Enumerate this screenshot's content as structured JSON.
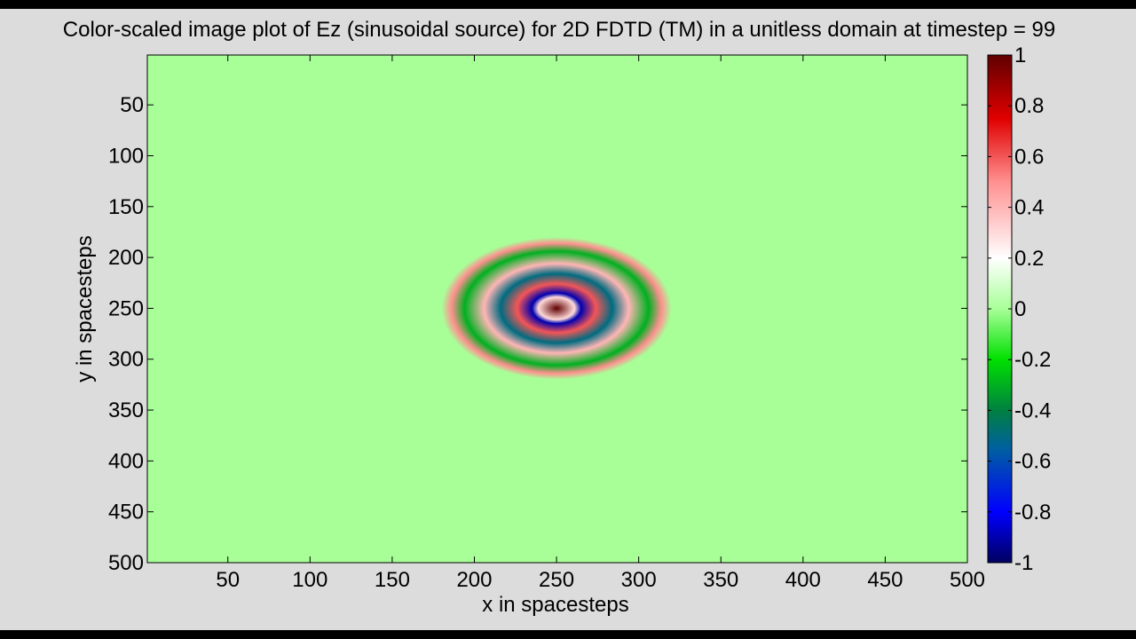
{
  "chart_data": {
    "type": "heatmap",
    "title": "Color-scaled image plot of Ez (sinusoidal source) for 2D FDTD (TM) in a unitless domain at timestep = 99",
    "xlabel": "x in spacesteps",
    "ylabel": "y in spacesteps",
    "xlim": [
      1,
      500
    ],
    "ylim": [
      1,
      500
    ],
    "y_axis_direction": "reversed",
    "x_ticks": [
      "50",
      "100",
      "150",
      "200",
      "250",
      "300",
      "350",
      "400",
      "450",
      "500"
    ],
    "y_ticks": [
      "50",
      "100",
      "150",
      "200",
      "250",
      "300",
      "350",
      "400",
      "450",
      "500"
    ],
    "grid": false,
    "background_value": 0,
    "source_center": [
      250,
      250
    ],
    "rings": [
      {
        "radius": 0,
        "value": 1.0
      },
      {
        "radius": 11,
        "value": 0.3
      },
      {
        "radius": 15,
        "value": -0.9
      },
      {
        "radius": 24,
        "value": 0.6
      },
      {
        "radius": 34,
        "value": -0.5
      },
      {
        "radius": 44,
        "value": 0.4
      },
      {
        "radius": 56,
        "value": -0.3
      },
      {
        "radius": 64,
        "value": 0.5
      },
      {
        "radius": 70,
        "value": 0
      }
    ],
    "colorbar": {
      "ticks": [
        "1",
        "0.8",
        "0.6",
        "0.4",
        "0.2",
        "0",
        "-0.2",
        "-0.4",
        "-0.6",
        "-0.8",
        "-1"
      ],
      "range": [
        -1,
        1
      ],
      "colormap": [
        {
          "value": -1.0,
          "color": "#000060"
        },
        {
          "value": -0.8,
          "color": "#0000ff"
        },
        {
          "value": -0.55,
          "color": "#0060a0"
        },
        {
          "value": -0.4,
          "color": "#008040"
        },
        {
          "value": -0.2,
          "color": "#00e000"
        },
        {
          "value": 0.0,
          "color": "#a8ff98"
        },
        {
          "value": 0.2,
          "color": "#ffffff"
        },
        {
          "value": 0.5,
          "color": "#ff9090"
        },
        {
          "value": 0.75,
          "color": "#e00000"
        },
        {
          "value": 1.0,
          "color": "#600000"
        }
      ]
    }
  }
}
